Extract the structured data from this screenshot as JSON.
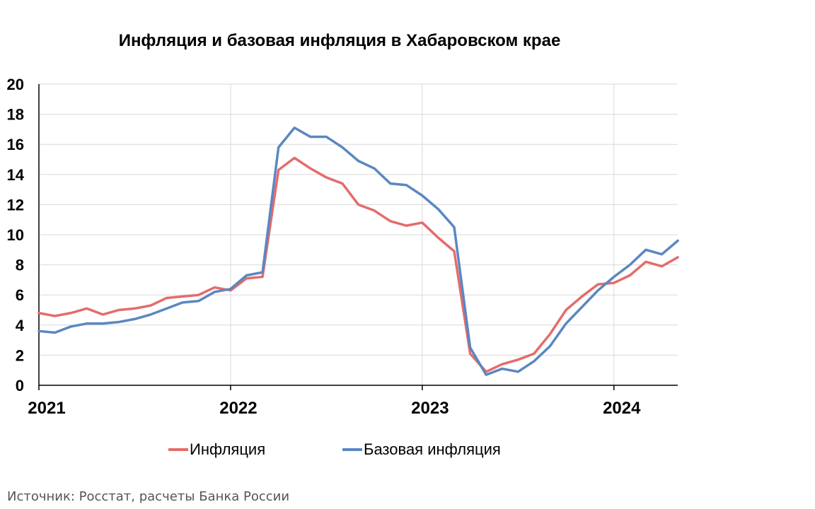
{
  "chart_data": {
    "type": "line",
    "title": "Инфляция и базовая инфляция в Хабаровском крае",
    "xlabel": "",
    "ylabel": "",
    "ylim": [
      0,
      20
    ],
    "yticks": [
      "0",
      "2",
      "4",
      "6",
      "8",
      "10",
      "12",
      "14",
      "16",
      "18",
      "20"
    ],
    "xticks": [
      "2021",
      "2022",
      "2023",
      "2024"
    ],
    "x_range_years": [
      2021,
      2024.333
    ],
    "grid": true,
    "legend_position": "bottom",
    "colors": {
      "inflation": "#e46c6c",
      "core": "#5b87c0",
      "grid": "#d9d9d9",
      "axis": "#000000"
    },
    "series": [
      {
        "name": "Инфляция",
        "x": [
          "2021-01",
          "2021-02",
          "2021-03",
          "2021-04",
          "2021-05",
          "2021-06",
          "2021-07",
          "2021-08",
          "2021-09",
          "2021-10",
          "2021-11",
          "2021-12",
          "2022-01",
          "2022-02",
          "2022-03",
          "2022-04",
          "2022-05",
          "2022-06",
          "2022-07",
          "2022-08",
          "2022-09",
          "2022-10",
          "2022-11",
          "2022-12",
          "2023-01",
          "2023-02",
          "2023-03",
          "2023-04",
          "2023-05",
          "2023-06",
          "2023-07",
          "2023-08",
          "2023-09",
          "2023-10",
          "2023-11",
          "2023-12",
          "2024-01",
          "2024-02",
          "2024-03",
          "2024-04",
          "2024-05"
        ],
        "values": [
          4.8,
          4.6,
          4.8,
          5.1,
          4.7,
          5.0,
          5.1,
          5.3,
          5.8,
          5.9,
          6.0,
          6.5,
          6.3,
          7.1,
          7.2,
          14.3,
          15.1,
          14.4,
          13.8,
          13.4,
          12.0,
          11.6,
          10.9,
          10.6,
          10.8,
          9.8,
          8.9,
          2.1,
          0.9,
          1.4,
          1.7,
          2.1,
          3.4,
          5.0,
          5.9,
          6.7,
          6.8,
          7.3,
          8.2,
          7.9,
          8.5
        ]
      },
      {
        "name": "Базовая инфляция",
        "x": [
          "2021-01",
          "2021-02",
          "2021-03",
          "2021-04",
          "2021-05",
          "2021-06",
          "2021-07",
          "2021-08",
          "2021-09",
          "2021-10",
          "2021-11",
          "2021-12",
          "2022-01",
          "2022-02",
          "2022-03",
          "2022-04",
          "2022-05",
          "2022-06",
          "2022-07",
          "2022-08",
          "2022-09",
          "2022-10",
          "2022-11",
          "2022-12",
          "2023-01",
          "2023-02",
          "2023-03",
          "2023-04",
          "2023-05",
          "2023-06",
          "2023-07",
          "2023-08",
          "2023-09",
          "2023-10",
          "2023-11",
          "2023-12",
          "2024-01",
          "2024-02",
          "2024-03",
          "2024-04",
          "2024-05"
        ],
        "values": [
          3.6,
          3.5,
          3.9,
          4.1,
          4.1,
          4.2,
          4.4,
          4.7,
          5.1,
          5.5,
          5.6,
          6.2,
          6.4,
          7.3,
          7.5,
          15.8,
          17.1,
          16.5,
          16.5,
          15.8,
          14.9,
          14.4,
          13.4,
          13.3,
          12.6,
          11.7,
          10.5,
          2.5,
          0.7,
          1.1,
          0.9,
          1.6,
          2.6,
          4.1,
          5.2,
          6.3,
          7.2,
          8.0,
          9.0,
          8.7,
          9.6
        ]
      }
    ]
  },
  "footer": {
    "source": "Источник: Росстат, расчеты Банка России"
  }
}
